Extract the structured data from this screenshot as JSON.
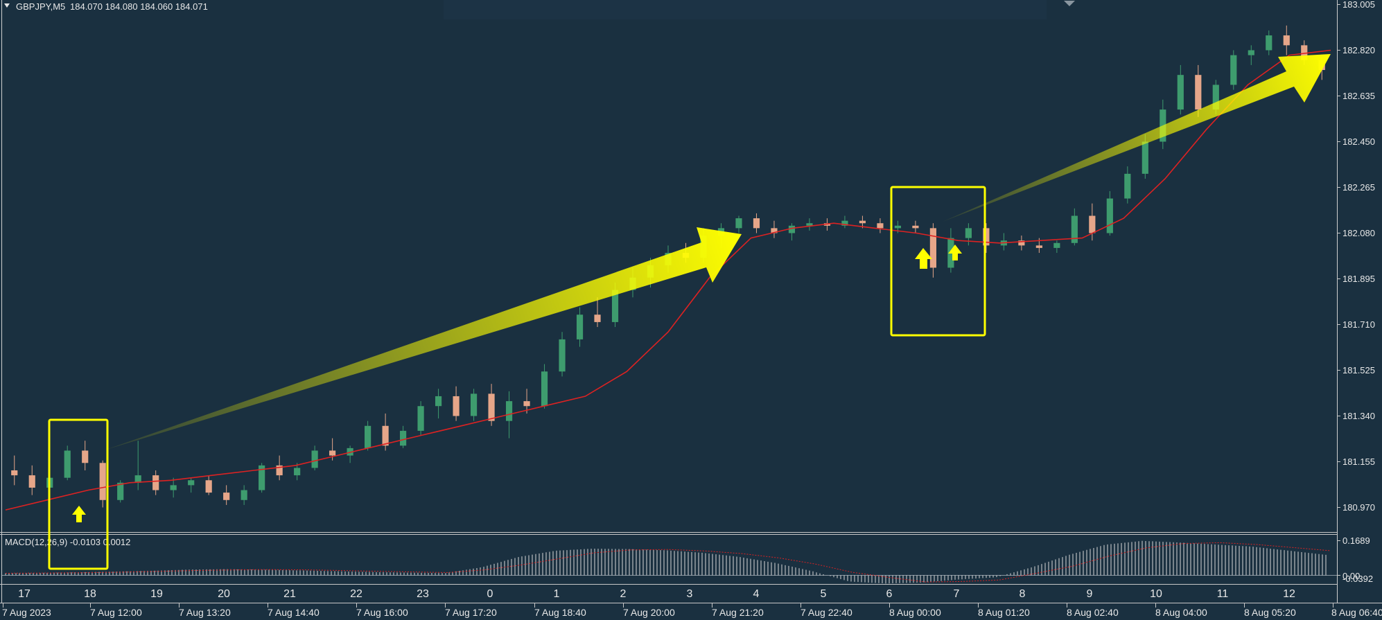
{
  "header": {
    "symbol_timeframe": "GBPJPY,M5",
    "quote_values": "184.070 184.080 184.060 184.071"
  },
  "macd_label": "MACD(12,26,9) -0.0103 0.0012",
  "colors": {
    "background": "#1a3040",
    "bull_candle": "#3e9c6e",
    "bear_candle": "#e6a689",
    "moving_average": "#dd2222",
    "annotation": "#ffff00",
    "text": "#e8e8e8",
    "separator": "#c8c8c8"
  },
  "chart_data": [
    {
      "type": "candlestick",
      "series": [
        {
          "name": "GBPJPY,M5",
          "ohlc_approx": [
            [
              181.12,
              181.18,
              181.06,
              181.1
            ],
            [
              181.1,
              181.14,
              181.02,
              181.05
            ],
            [
              181.05,
              181.12,
              181.03,
              181.09
            ],
            [
              181.09,
              181.22,
              181.08,
              181.2
            ],
            [
              181.2,
              181.24,
              181.12,
              181.15
            ],
            [
              181.15,
              181.16,
              180.97,
              181.0
            ],
            [
              181.0,
              181.08,
              180.99,
              181.07
            ],
            [
              181.07,
              181.24,
              181.04,
              181.1
            ],
            [
              181.1,
              181.12,
              181.02,
              181.04
            ],
            [
              181.04,
              181.09,
              181.01,
              181.06
            ],
            [
              181.06,
              181.09,
              181.03,
              181.08
            ],
            [
              181.08,
              181.1,
              181.02,
              181.03
            ],
            [
              181.03,
              181.06,
              180.98,
              181.0
            ],
            [
              181.0,
              181.06,
              180.98,
              181.04
            ],
            [
              181.04,
              181.15,
              181.03,
              181.14
            ],
            [
              181.14,
              181.18,
              181.08,
              181.1
            ],
            [
              181.1,
              181.15,
              181.08,
              181.13
            ],
            [
              181.13,
              181.22,
              181.12,
              181.2
            ],
            [
              181.2,
              181.25,
              181.16,
              181.18
            ],
            [
              181.18,
              181.22,
              181.15,
              181.21
            ],
            [
              181.21,
              181.32,
              181.2,
              181.3
            ],
            [
              181.3,
              181.35,
              181.2,
              181.22
            ],
            [
              181.22,
              181.3,
              181.21,
              181.28
            ],
            [
              181.28,
              181.4,
              181.26,
              181.38
            ],
            [
              181.38,
              181.45,
              181.33,
              181.42
            ],
            [
              181.42,
              181.46,
              181.32,
              181.34
            ],
            [
              181.34,
              181.45,
              181.32,
              181.43
            ],
            [
              181.43,
              181.47,
              181.3,
              181.32
            ],
            [
              181.32,
              181.44,
              181.25,
              181.4
            ],
            [
              181.4,
              181.45,
              181.35,
              181.38
            ],
            [
              181.38,
              181.55,
              181.37,
              181.52
            ],
            [
              181.52,
              181.68,
              181.5,
              181.65
            ],
            [
              181.65,
              181.78,
              181.62,
              181.75
            ],
            [
              181.75,
              181.82,
              181.7,
              181.72
            ],
            [
              181.72,
              181.88,
              181.7,
              181.85
            ],
            [
              181.85,
              181.94,
              181.82,
              181.9
            ],
            [
              181.9,
              181.98,
              181.86,
              181.95
            ],
            [
              181.95,
              182.03,
              181.92,
              182.0
            ],
            [
              182.0,
              182.04,
              181.96,
              181.98
            ],
            [
              181.98,
              182.1,
              181.96,
              182.07
            ],
            [
              182.07,
              182.12,
              182.02,
              182.1
            ],
            [
              182.1,
              182.15,
              182.08,
              182.14
            ],
            [
              182.14,
              182.16,
              182.08,
              182.1
            ],
            [
              182.1,
              182.13,
              182.06,
              182.08
            ],
            [
              182.08,
              182.12,
              182.05,
              182.11
            ],
            [
              182.11,
              182.14,
              182.09,
              182.12
            ],
            [
              182.12,
              182.14,
              182.09,
              182.11
            ],
            [
              182.11,
              182.15,
              182.1,
              182.13
            ],
            [
              182.13,
              182.15,
              182.1,
              182.12
            ],
            [
              182.12,
              182.14,
              182.08,
              182.1
            ],
            [
              182.1,
              182.13,
              182.08,
              182.11
            ],
            [
              182.11,
              182.13,
              182.08,
              182.1
            ],
            [
              182.1,
              182.12,
              181.9,
              181.94
            ],
            [
              181.94,
              182.1,
              181.92,
              182.06
            ],
            [
              182.06,
              182.12,
              182.03,
              182.1
            ],
            [
              182.1,
              182.12,
              182.0,
              182.03
            ],
            [
              182.03,
              182.08,
              182.01,
              182.05
            ],
            [
              182.05,
              182.07,
              182.01,
              182.03
            ],
            [
              182.03,
              182.06,
              182.0,
              182.02
            ],
            [
              182.02,
              182.05,
              182.0,
              182.04
            ],
            [
              182.04,
              182.18,
              182.03,
              182.15
            ],
            [
              182.15,
              182.2,
              182.05,
              182.08
            ],
            [
              182.08,
              182.25,
              182.07,
              182.22
            ],
            [
              182.22,
              182.35,
              182.2,
              182.32
            ],
            [
              182.32,
              182.48,
              182.3,
              182.45
            ],
            [
              182.45,
              182.62,
              182.42,
              182.58
            ],
            [
              182.58,
              182.76,
              182.56,
              182.72
            ],
            [
              182.72,
              182.76,
              182.55,
              182.58
            ],
            [
              182.58,
              182.7,
              182.56,
              182.68
            ],
            [
              182.68,
              182.82,
              182.66,
              182.8
            ],
            [
              182.8,
              182.84,
              182.76,
              182.82
            ],
            [
              182.82,
              182.9,
              182.8,
              182.88
            ],
            [
              182.88,
              182.92,
              182.8,
              182.84
            ],
            [
              182.84,
              182.86,
              182.76,
              182.78
            ],
            [
              182.78,
              182.8,
              182.7,
              182.74
            ]
          ]
        },
        {
          "name": "moving-average",
          "values_approx": [
            180.96,
            181.0,
            181.04,
            181.07,
            181.08,
            181.1,
            181.12,
            181.14,
            181.18,
            181.22,
            181.26,
            181.3,
            181.34,
            181.38,
            181.42,
            181.52,
            181.68,
            181.9,
            182.06,
            182.1,
            182.12,
            182.1,
            182.08,
            182.05,
            182.04,
            182.05,
            182.06,
            182.14,
            182.3,
            182.5,
            182.68,
            182.8,
            182.82
          ]
        }
      ],
      "y_axis": {
        "ticks": [
          "183.005",
          "182.820",
          "182.635",
          "182.450",
          "182.265",
          "182.080",
          "181.895",
          "181.710",
          "181.525",
          "181.340",
          "181.155",
          "180.970"
        ],
        "ylim": [
          180.9,
          183.01
        ]
      },
      "x_axis": {
        "top_ticks": [
          "17",
          "18",
          "19",
          "20",
          "21",
          "22",
          "23",
          "0",
          "1",
          "2",
          "3",
          "4",
          "5",
          "6",
          "7",
          "8",
          "9",
          "10",
          "11",
          "12"
        ],
        "bottom_ticks": [
          "7 Aug 2023",
          "7 Aug 12:00",
          "7 Aug 13:20",
          "7 Aug 14:40",
          "7 Aug 16:00",
          "7 Aug 17:20",
          "7 Aug 18:40",
          "7 Aug 20:00",
          "7 Aug 21:20",
          "7 Aug 22:40",
          "8 Aug 00:00",
          "8 Aug 01:20",
          "8 Aug 02:40",
          "8 Aug 04:00",
          "8 Aug 05:20",
          "8 Aug 06:40"
        ]
      },
      "annotations": [
        "highlight-box-1",
        "highlight-box-2",
        "up-arrows",
        "trend-arrows"
      ]
    },
    {
      "type": "bar",
      "name": "MACD(12,26,9)",
      "values_approx": [
        0.01,
        0.012,
        0.015,
        0.018,
        0.022,
        0.028,
        0.03,
        0.028,
        0.024,
        0.02,
        0.016,
        0.013,
        0.011,
        0.04,
        0.09,
        0.12,
        0.13,
        0.128,
        0.122,
        0.11,
        0.09,
        0.06,
        0.02,
        -0.03,
        -0.04,
        -0.035,
        -0.02,
        -0.01,
        0.04,
        0.1,
        0.15,
        0.168,
        0.16,
        0.15,
        0.14,
        0.12,
        0.1
      ],
      "y_axis": {
        "ticks": [
          "0.1689",
          "0.00",
          "-0.0392"
        ],
        "ylim": [
          -0.045,
          0.175
        ]
      }
    }
  ]
}
